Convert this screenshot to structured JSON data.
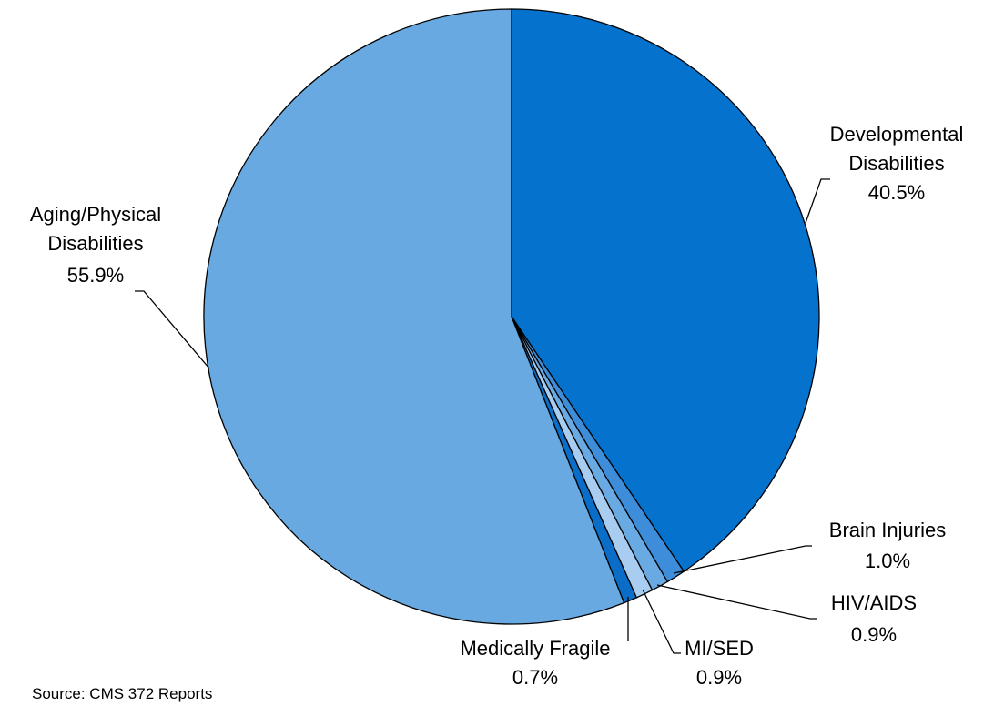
{
  "chart_data": {
    "type": "pie",
    "categories": [
      "Developmental Disabilities",
      "Brain Injuries",
      "HIV/AIDS",
      "MI/SED",
      "Medically Fragile",
      "Aging/Physical Disabilities"
    ],
    "values": [
      40.5,
      1.0,
      0.9,
      0.9,
      0.7,
      55.9
    ],
    "value_labels": [
      "40.5%",
      "1.0%",
      "0.9%",
      "0.9%",
      "0.7%",
      "55.9%"
    ],
    "colors": [
      "#0572cd",
      "#3d8ddb",
      "#6aaae3",
      "#a9cdf1",
      "#0a6ec9",
      "#67a9e0"
    ],
    "source": "Source: CMS 372 Reports"
  }
}
